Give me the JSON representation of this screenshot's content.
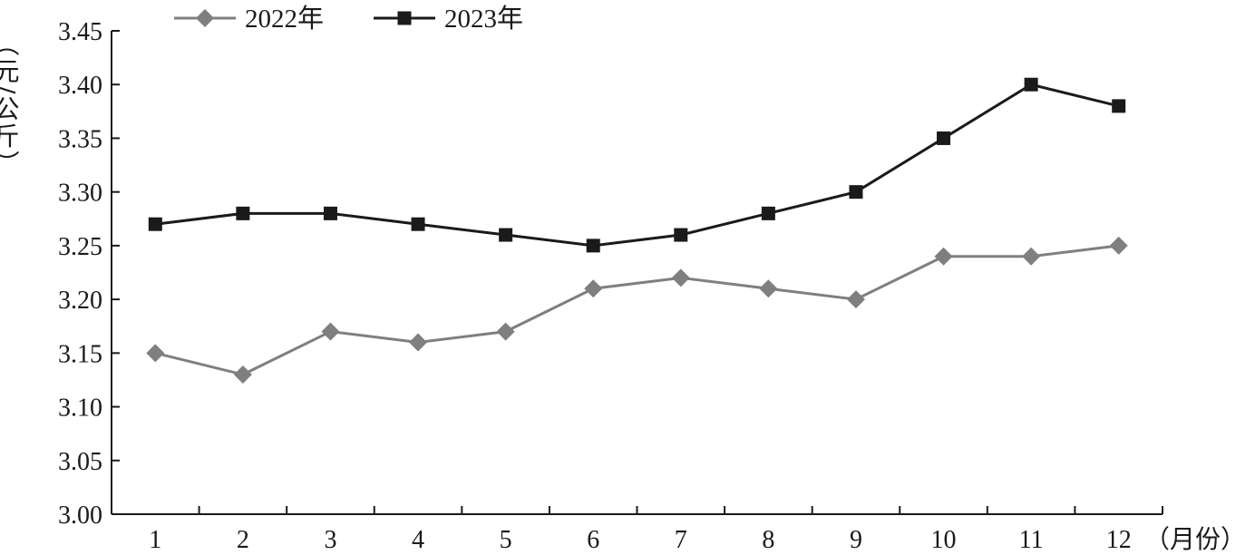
{
  "chart_data": {
    "type": "line",
    "categories": [
      "1",
      "2",
      "3",
      "4",
      "5",
      "6",
      "7",
      "8",
      "9",
      "10",
      "11",
      "12"
    ],
    "series": [
      {
        "name": "2022年",
        "values": [
          3.15,
          3.13,
          3.17,
          3.16,
          3.17,
          3.21,
          3.22,
          3.21,
          3.2,
          3.24,
          3.24,
          3.25
        ],
        "color": "#7f7f7f",
        "marker": "diamond"
      },
      {
        "name": "2023年",
        "values": [
          3.27,
          3.28,
          3.28,
          3.27,
          3.26,
          3.25,
          3.26,
          3.28,
          3.3,
          3.35,
          3.4,
          3.38
        ],
        "color": "#1a1a1a",
        "marker": "square"
      }
    ],
    "ylim": [
      3.0,
      3.45
    ],
    "yticks": [
      "3.00",
      "3.05",
      "3.10",
      "3.15",
      "3.20",
      "3.25",
      "3.30",
      "3.35",
      "3.40",
      "3.45"
    ],
    "ylabel": "（元/公斤）",
    "xlabel": "（月份）",
    "grid": false,
    "legend_position": "top-left"
  }
}
